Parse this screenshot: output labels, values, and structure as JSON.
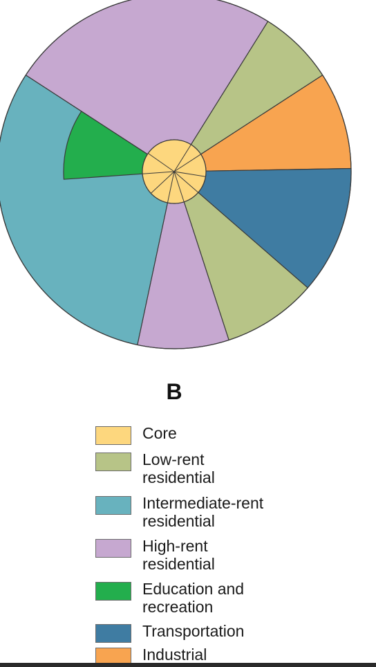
{
  "figure": {
    "panel_label": "B",
    "legend": [
      {
        "key": "core",
        "label": "Core",
        "color": "#FDD77E"
      },
      {
        "key": "low",
        "label": "Low-rent residential",
        "color": "#B7C487"
      },
      {
        "key": "inter",
        "label": "Intermediate-rent residential",
        "color": "#68B2BE"
      },
      {
        "key": "high",
        "label": "High-rent residential",
        "color": "#C6A8D0"
      },
      {
        "key": "edu",
        "label": "Education and recreation",
        "color": "#23AE4D"
      },
      {
        "key": "trans",
        "label": "Transportation",
        "color": "#3F7CA2"
      },
      {
        "key": "ind",
        "label": "Industrial",
        "color": "#F8A450"
      }
    ],
    "sectors": [
      {
        "zone": "high"
      },
      {
        "zone": "low"
      },
      {
        "zone": "ind"
      },
      {
        "zone": "trans"
      },
      {
        "zone": "low"
      },
      {
        "zone": "high"
      },
      {
        "zone": "inter"
      }
    ],
    "inner_sector": {
      "zone": "edu"
    }
  }
}
